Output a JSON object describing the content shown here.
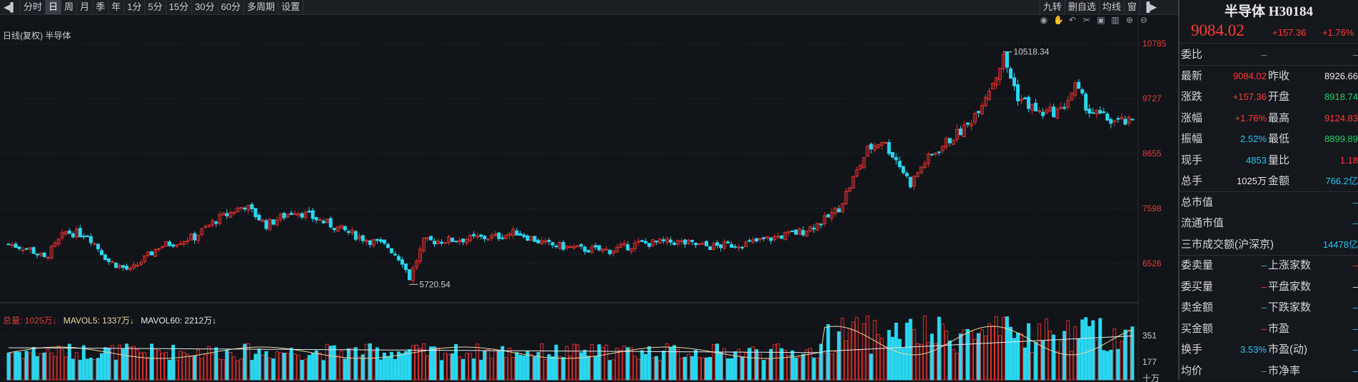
{
  "toolbar": {
    "items": [
      "分时",
      "日",
      "周",
      "月",
      "季",
      "年",
      "1分",
      "5分",
      "15分",
      "30分",
      "60分",
      "多周期",
      "设置"
    ],
    "active": "日",
    "right_items": [
      "九转",
      "删自选",
      "均线",
      "窗"
    ]
  },
  "chart": {
    "title": "日线(复权)  半导体",
    "colors": {
      "up": "#e02f2f",
      "down": "#2ad7f0",
      "bg": "#111418",
      "grid": "#2a2e35",
      "ma5": "#e8d8a0",
      "ma60": "#e6e8eb"
    },
    "y_ticks": [
      "10785",
      "9727",
      "8655",
      "7598",
      "6526"
    ],
    "vol_ticks": [
      "351",
      "177",
      "十万"
    ],
    "high_annotation": "10518.34",
    "low_annotation": "5720.54",
    "tool_icons": [
      "eye-icon",
      "hand-icon",
      "undo-icon",
      "scissors-icon",
      "lock-icon",
      "trash-icon",
      "zoom-in-icon",
      "zoom-out-icon"
    ]
  },
  "volume_legend": {
    "total": "总量: 1025万↓",
    "mavol5": "MAVOL5: 1337万↓",
    "mavol60": "MAVOL60: 2212万↓"
  },
  "panel": {
    "title": "半导体 H30184",
    "price": "9084.02",
    "change": "+157.36",
    "pct": "+1.76%",
    "rows": [
      {
        "l": "委比",
        "v1": "–",
        "l2": "",
        "v2": "–",
        "c1": "dim",
        "c2": "dim"
      },
      {
        "l": "最新",
        "v1": "9084.02",
        "l2": "昨收",
        "v2": "8926.66",
        "c1": "red",
        "c2": "white"
      },
      {
        "l": "涨跌",
        "v1": "+157.36",
        "l2": "开盘",
        "v2": "8918.74",
        "c1": "red",
        "c2": "green"
      },
      {
        "l": "涨幅",
        "v1": "+1.76%",
        "l2": "最高",
        "v2": "9124.83",
        "c1": "red",
        "c2": "red"
      },
      {
        "l": "振幅",
        "v1": "2.52%",
        "l2": "最低",
        "v2": "8899.89",
        "c1": "cyan",
        "c2": "green"
      },
      {
        "l": "现手",
        "v1": "4853",
        "l2": "量比",
        "v2": "1.18",
        "c1": "cyan",
        "c2": "red"
      },
      {
        "l": "总手",
        "v1": "1025万",
        "l2": "金额",
        "v2": "766.2亿",
        "c1": "white",
        "c2": "cyan"
      },
      {
        "l": "总市值",
        "v1": "",
        "l2": "",
        "v2": "–",
        "c1": "dim",
        "c2": "cyan"
      },
      {
        "l": "流通市值",
        "v1": "",
        "l2": "",
        "v2": "–",
        "c1": "dim",
        "c2": "cyan"
      },
      {
        "l": "三市成交额(沪深京)",
        "v1": "",
        "l2": "",
        "v2": "14478亿",
        "c1": "dim",
        "c2": "cyan"
      },
      {
        "l": "委卖量",
        "v1": "–",
        "l2": "上涨家数",
        "v2": "–",
        "c1": "cyan",
        "c2": "red"
      },
      {
        "l": "委买量",
        "v1": "–",
        "l2": "平盘家数",
        "v2": "–",
        "c1": "red",
        "c2": "white"
      },
      {
        "l": "卖金额",
        "v1": "–",
        "l2": "下跌家数",
        "v2": "–",
        "c1": "cyan",
        "c2": "cyan"
      },
      {
        "l": "买金额",
        "v1": "–",
        "l2": "市盈",
        "v2": "–",
        "c1": "red",
        "c2": "cyan"
      },
      {
        "l": "换手",
        "v1": "3.53%",
        "l2": "市盈(动)",
        "v2": "–",
        "c1": "cyan",
        "c2": "cyan"
      },
      {
        "l": "均价",
        "v1": "–",
        "l2": "市净率",
        "v2": "–",
        "c1": "dim",
        "c2": "cyan"
      }
    ]
  }
}
